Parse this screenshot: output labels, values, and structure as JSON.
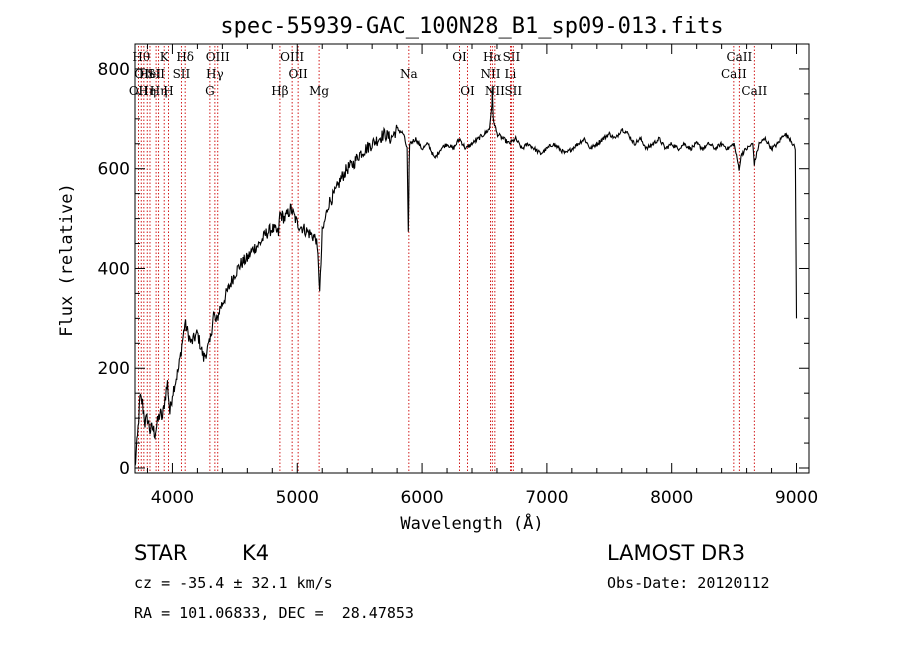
{
  "chart_data": {
    "type": "line",
    "title": "spec-55939-GAC_100N28_B1_sp09-013.fits",
    "xlabel": "Wavelength (Å)",
    "ylabel": "Flux (relative)",
    "xlim": [
      3700,
      9100
    ],
    "ylim": [
      -10,
      850
    ],
    "x_ticks": [
      4000,
      5000,
      6000,
      7000,
      8000,
      9000
    ],
    "y_ticks": [
      0,
      200,
      400,
      600,
      800
    ],
    "grid": false,
    "line_color": "#000000",
    "marker_color": "#cc0000",
    "series": [
      {
        "x": [
          3700,
          3720,
          3740,
          3760,
          3780,
          3800,
          3820,
          3840,
          3860,
          3880,
          3900,
          3920,
          3940,
          3960,
          3980,
          4000,
          4050,
          4100,
          4150,
          4200,
          4250,
          4300,
          4330,
          4350,
          4380,
          4400,
          4450,
          4500,
          4550,
          4600,
          4650,
          4700,
          4750,
          4800,
          4850,
          4860,
          4900,
          4950,
          5000,
          5050,
          5100,
          5150,
          5170,
          5180,
          5200,
          5250,
          5300,
          5350,
          5400,
          5450,
          5500,
          5550,
          5600,
          5650,
          5700,
          5750,
          5800,
          5850,
          5880,
          5890,
          5893,
          5896,
          5900,
          5950,
          6000,
          6050,
          6100,
          6150,
          6200,
          6250,
          6300,
          6350,
          6400,
          6450,
          6500,
          6540,
          6560,
          6563,
          6570,
          6600,
          6650,
          6700,
          6750,
          6800,
          6850,
          6900,
          6950,
          7000,
          7050,
          7100,
          7150,
          7200,
          7250,
          7300,
          7350,
          7400,
          7450,
          7500,
          7550,
          7600,
          7650,
          7700,
          7750,
          7800,
          7850,
          7900,
          7950,
          8000,
          8050,
          8100,
          8150,
          8200,
          8250,
          8300,
          8350,
          8400,
          8450,
          8500,
          8540,
          8560,
          8600,
          8650,
          8662,
          8700,
          8750,
          8800,
          8850,
          8900,
          8950,
          8990,
          9000
        ],
        "y": [
          0,
          60,
          140,
          130,
          90,
          100,
          75,
          80,
          70,
          90,
          110,
          100,
          140,
          170,
          110,
          150,
          200,
          290,
          250,
          270,
          220,
          250,
          310,
          290,
          320,
          330,
          360,
          390,
          410,
          420,
          440,
          450,
          470,
          480,
          470,
          510,
          500,
          520,
          490,
          480,
          470,
          460,
          410,
          350,
          470,
          530,
          550,
          580,
          600,
          610,
          630,
          640,
          650,
          660,
          670,
          660,
          680,
          670,
          640,
          470,
          520,
          600,
          650,
          660,
          640,
          650,
          620,
          640,
          650,
          640,
          660,
          640,
          650,
          660,
          670,
          680,
          730,
          760,
          700,
          670,
          660,
          650,
          660,
          640,
          650,
          640,
          630,
          640,
          650,
          640,
          630,
          640,
          650,
          660,
          640,
          650,
          660,
          670,
          660,
          680,
          670,
          650,
          660,
          640,
          650,
          660,
          640,
          650,
          640,
          650,
          640,
          650,
          640,
          650,
          640,
          650,
          640,
          650,
          600,
          630,
          640,
          650,
          610,
          650,
          660,
          640,
          650,
          670,
          660,
          640,
          300
        ]
      }
    ],
    "line_markers": [
      {
        "x": 3728,
        "label": "OII",
        "row": 2
      },
      {
        "x": 3750,
        "label": "Hθ",
        "row": 0
      },
      {
        "x": 3771,
        "label": "OII",
        "row": 1
      },
      {
        "x": 3798,
        "label": "Hη",
        "row": 2
      },
      {
        "x": 3820,
        "label": "HeI",
        "row": 1
      },
      {
        "x": 3869,
        "label": "SII",
        "row": 1
      },
      {
        "x": 3889,
        "label": "Hη",
        "row": 2
      },
      {
        "x": 3934,
        "label": "K",
        "row": 0
      },
      {
        "x": 3968,
        "label": "H",
        "row": 2
      },
      {
        "x": 4102,
        "label": "Hδ",
        "row": 0
      },
      {
        "x": 4072,
        "label": "SII",
        "row": 1
      },
      {
        "x": 4300,
        "label": "G",
        "row": 2
      },
      {
        "x": 4340,
        "label": "Hγ",
        "row": 1
      },
      {
        "x": 4363,
        "label": "OIII",
        "row": 0
      },
      {
        "x": 4861,
        "label": "Hβ",
        "row": 2
      },
      {
        "x": 4959,
        "label": "OIII",
        "row": 0
      },
      {
        "x": 5007,
        "label": "OII",
        "row": 1
      },
      {
        "x": 5175,
        "label": "Mg",
        "row": 2
      },
      {
        "x": 5894,
        "label": "Na",
        "row": 1
      },
      {
        "x": 6300,
        "label": "OI",
        "row": 0
      },
      {
        "x": 6364,
        "label": "OI",
        "row": 2
      },
      {
        "x": 6548,
        "label": "NII",
        "row": 1
      },
      {
        "x": 6563,
        "label": "Hα",
        "row": 0
      },
      {
        "x": 6583,
        "label": "NII",
        "row": 2
      },
      {
        "x": 6708,
        "label": "Li",
        "row": 1
      },
      {
        "x": 6716,
        "label": "SII",
        "row": 0
      },
      {
        "x": 6731,
        "label": "SII",
        "row": 2
      },
      {
        "x": 8498,
        "label": "CaII",
        "row": 1
      },
      {
        "x": 8542,
        "label": "CaII",
        "row": 0
      },
      {
        "x": 8662,
        "label": "CaII",
        "row": 2
      }
    ]
  },
  "info": {
    "class_label": "STAR",
    "subclass": "K4",
    "survey": "LAMOST DR3",
    "cz": "cz = -35.4 ± 32.1 km/s",
    "obs_date": "Obs-Date: 20120112",
    "coords": "RA = 101.06833, DEC =  28.47853"
  }
}
